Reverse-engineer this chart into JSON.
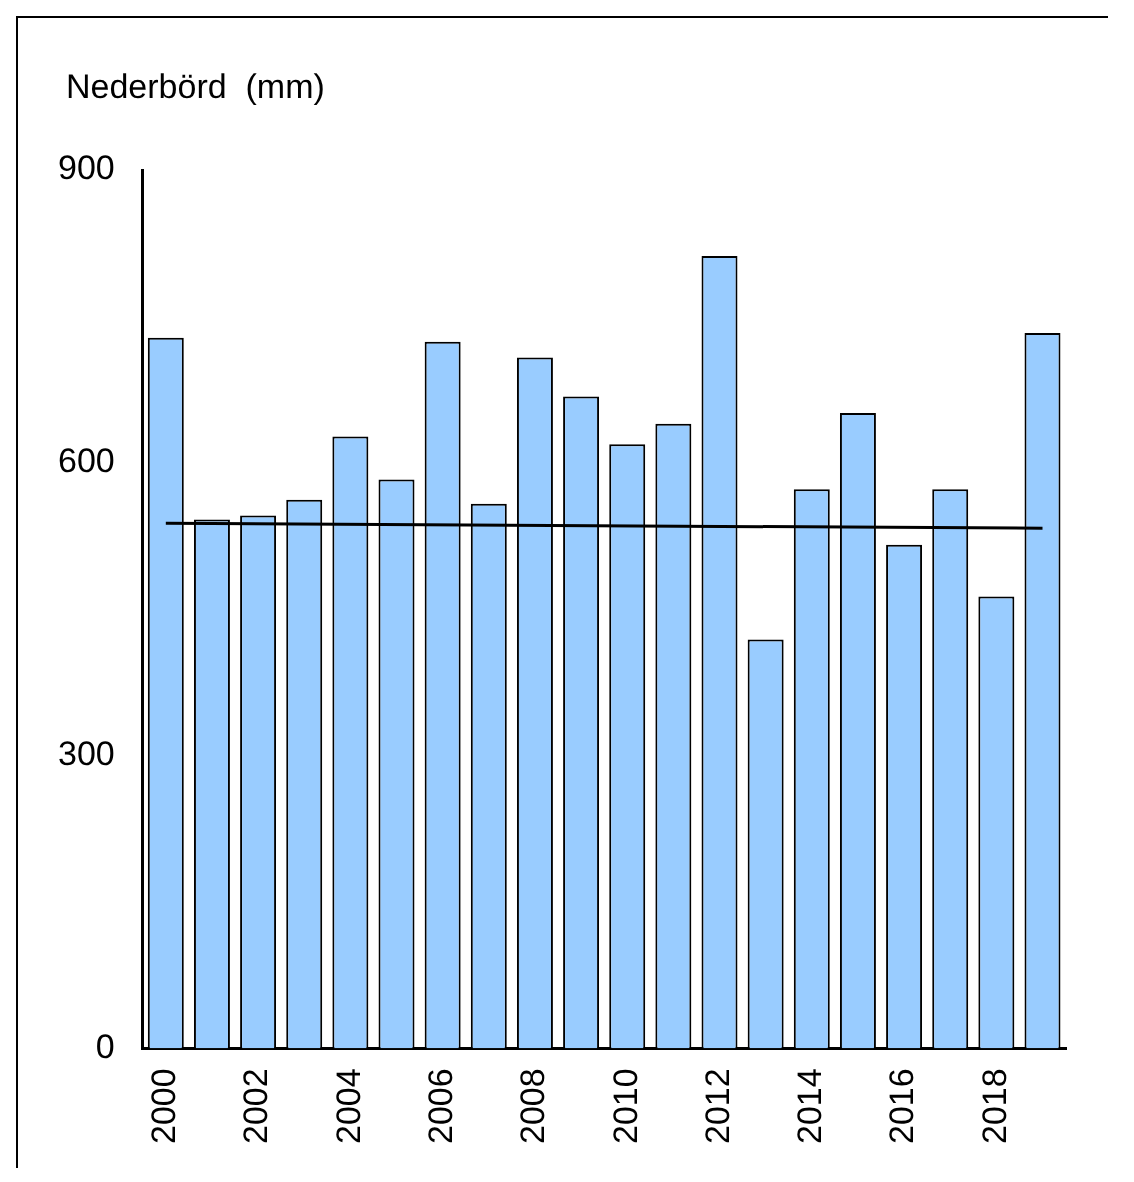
{
  "chart_data": {
    "type": "bar",
    "ylabel": "Nederbörd  (mm)",
    "categories": [
      "2000",
      null,
      "2002",
      null,
      "2004",
      null,
      "2006",
      null,
      "2008",
      null,
      "2010",
      null,
      "2012",
      null,
      "2014",
      null,
      "2016",
      null,
      "2018",
      null
    ],
    "series": [
      {
        "color": "#99ccff",
        "values": [
          728,
          542,
          546,
          562,
          627,
          583,
          724,
          558,
          708,
          668,
          619,
          640,
          812,
          419,
          573,
          651,
          516,
          573,
          463,
          733
        ]
      },
      {
        "type": "line",
        "color": "#000000",
        "marker": "none",
        "values": [
          538,
          null,
          null,
          null,
          null,
          null,
          null,
          null,
          null,
          null,
          null,
          null,
          null,
          null,
          null,
          null,
          null,
          null,
          null,
          533
        ]
      }
    ],
    "ylim": [
      0,
      900
    ],
    "yticks": [
      0,
      300,
      600,
      900
    ],
    "grid": false,
    "legend": false
  }
}
